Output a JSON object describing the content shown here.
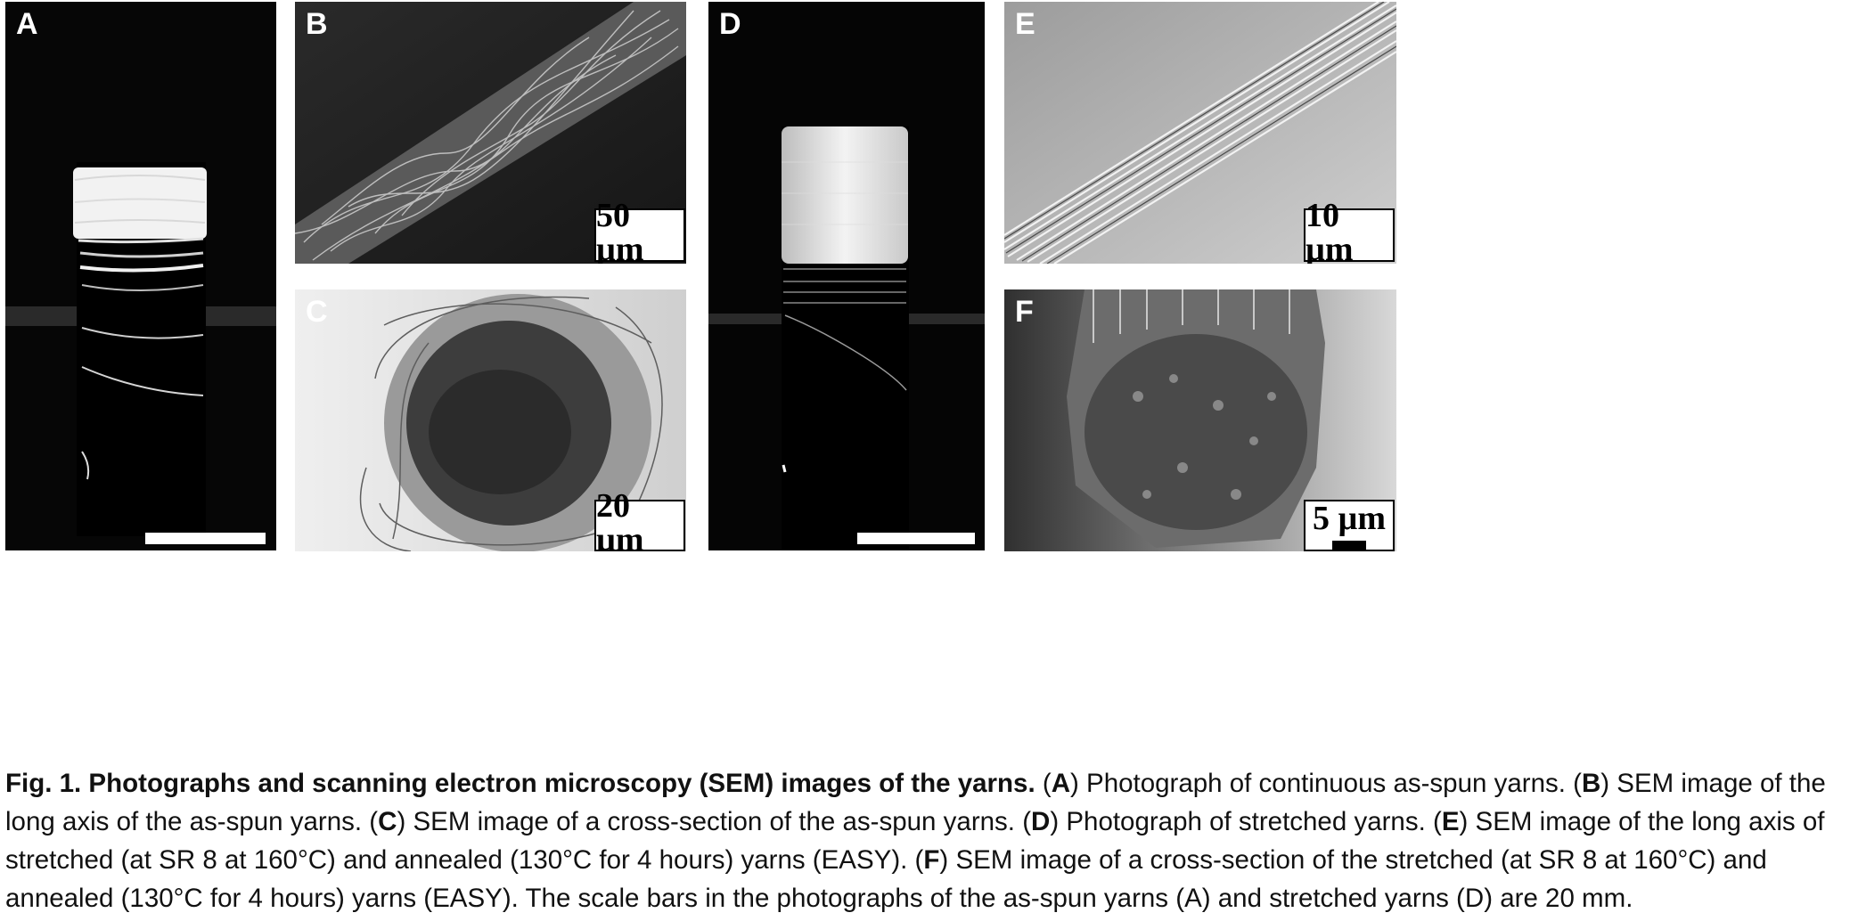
{
  "panels": {
    "A": {
      "label": "A"
    },
    "B": {
      "label": "B",
      "scale": "50 µm"
    },
    "C": {
      "label": "C",
      "scale": "20 µm"
    },
    "D": {
      "label": "D"
    },
    "E": {
      "label": "E",
      "scale": "10 µm"
    },
    "F": {
      "label": "F",
      "scale": "5 µm"
    }
  },
  "caption": {
    "title": "Fig. 1. Photographs and scanning electron microscopy (SEM) images of the yarns.",
    "segments": [
      {
        "lead": " (",
        "ref": "A",
        "text": ") Photograph of continuous as-spun yarns."
      },
      {
        "lead": " (",
        "ref": "B",
        "text": ") SEM image of the long axis of the as-spun yarns."
      },
      {
        "lead": " (",
        "ref": "C",
        "text": ") SEM image of a cross-section of the as-spun yarns."
      },
      {
        "lead": " (",
        "ref": "D",
        "text": ") Photograph of stretched yarns."
      },
      {
        "lead": " (",
        "ref": "E",
        "text": ") SEM image of the long axis of stretched (at SR 8 at 160°C) and annealed (130°C for 4 hours) yarns (EASY)."
      },
      {
        "lead": " (",
        "ref": "F",
        "text": ") SEM image of a cross-section of the stretched (at SR 8 at 160°C) and annealed (130°C for 4 hours) yarns (EASY). The scale bars in the photographs of the as-spun yarns (A) and stretched yarns (D) are 20 mm."
      }
    ]
  }
}
